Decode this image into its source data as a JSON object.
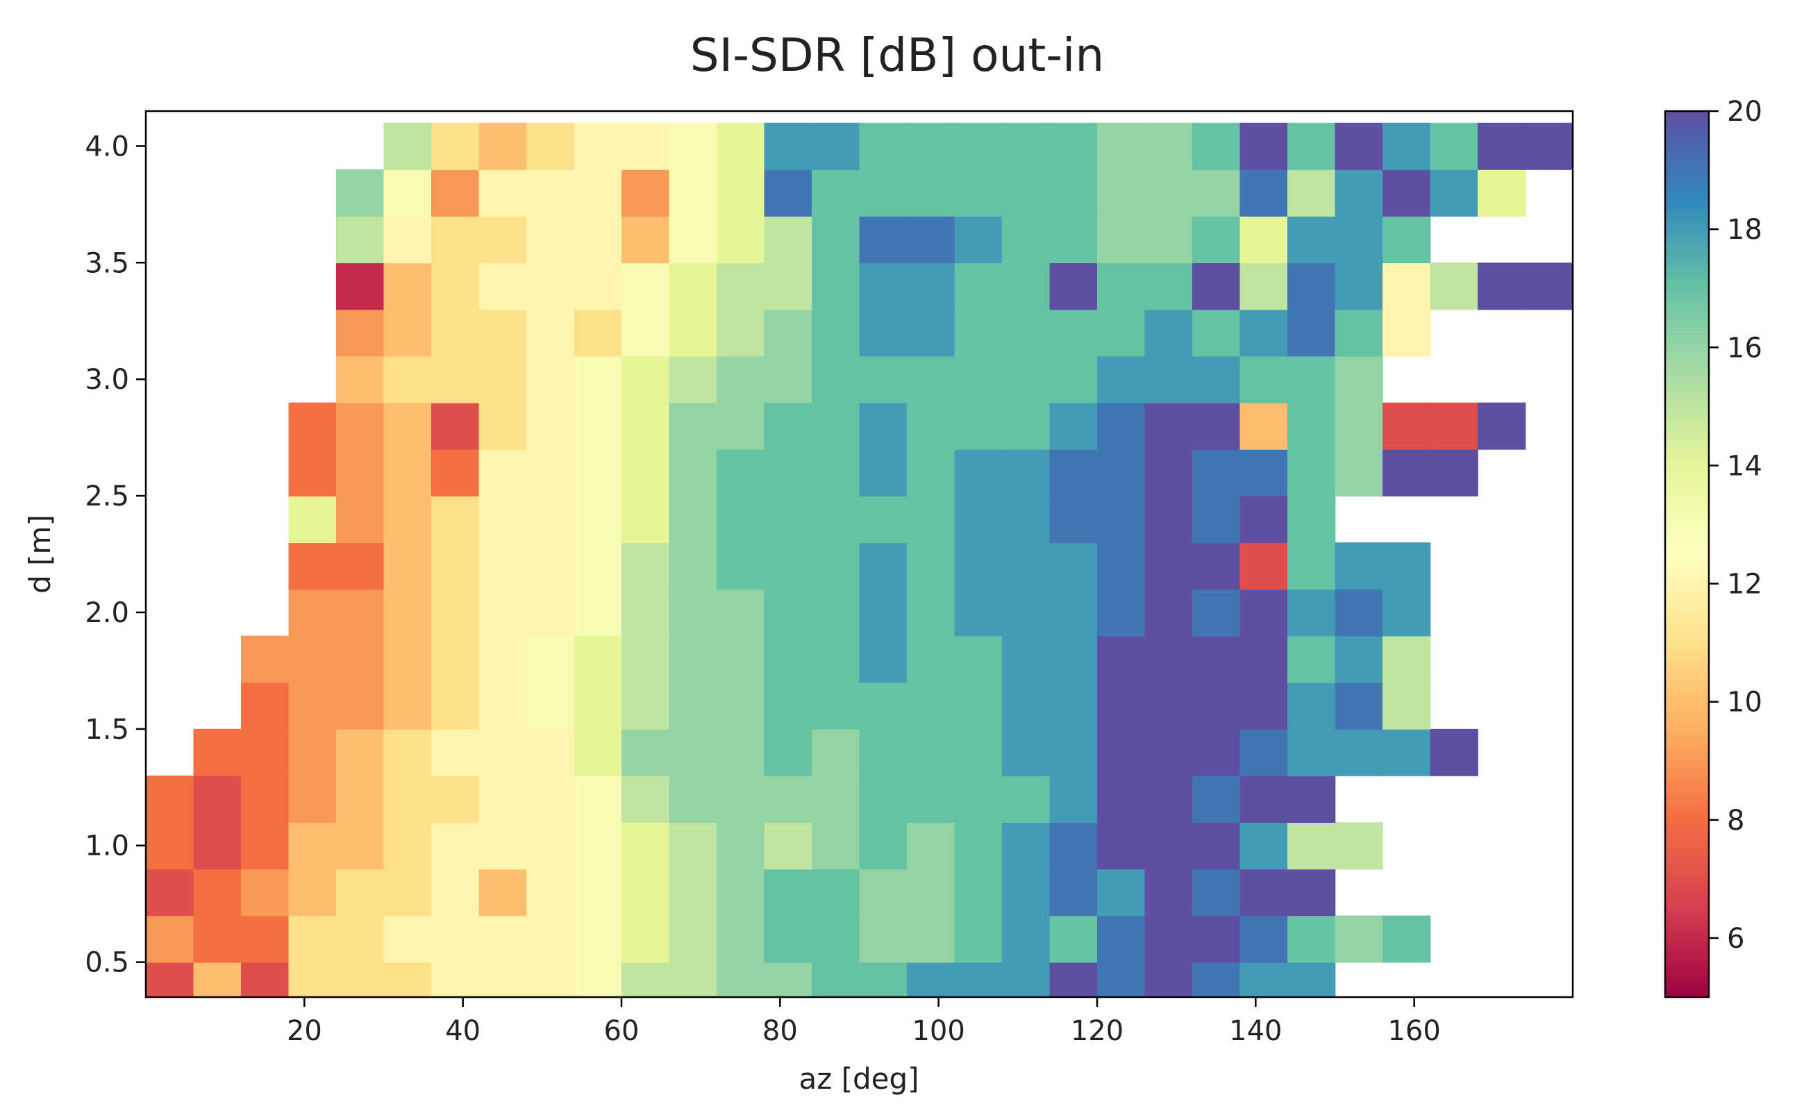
{
  "chart_data": {
    "type": "heatmap",
    "title": "SI-SDR [dB] out-in",
    "xlabel": "az [deg]",
    "ylabel": "d [m]",
    "xlim": [
      0,
      180
    ],
    "ylim": [
      0.35,
      4.15
    ],
    "x_ticks": [
      20,
      40,
      60,
      80,
      100,
      120,
      140,
      160
    ],
    "x_tick_labels": [
      "20",
      "40",
      "60",
      "80",
      "100",
      "120",
      "140",
      "160"
    ],
    "y_ticks": [
      0.5,
      1.0,
      1.5,
      2.0,
      2.5,
      3.0,
      3.5,
      4.0
    ],
    "y_tick_labels": [
      "0.5",
      "1.0",
      "1.5",
      "2.0",
      "2.5",
      "3.0",
      "3.5",
      "4.0"
    ],
    "colorbar": {
      "colormap": "Spectral",
      "range": [
        5,
        20
      ],
      "ticks": [
        6,
        8,
        10,
        12,
        14,
        16,
        18,
        20
      ],
      "tick_labels": [
        "6",
        "8",
        "10",
        "12",
        "14",
        "16",
        "18",
        "20"
      ]
    },
    "grid": false,
    "legend": "none",
    "missing_value_color": "#ffffff",
    "cell_size": {
      "az": 6,
      "d": 0.2
    },
    "z_rows": [
      {
        "d": 0.4,
        "values": [
          7,
          10,
          7,
          11,
          11,
          11,
          12,
          12,
          12,
          13,
          15,
          15,
          16,
          16,
          17,
          17,
          18,
          18,
          18,
          20,
          19,
          20,
          19,
          18,
          18,
          null,
          null,
          null,
          null,
          null
        ]
      },
      {
        "d": 0.6,
        "values": [
          9,
          8,
          8,
          11,
          11,
          12,
          12,
          12,
          12,
          13,
          14,
          15,
          16,
          17,
          17,
          16,
          16,
          17,
          18,
          17,
          19,
          20,
          20,
          19,
          17,
          16,
          17,
          null,
          null,
          null
        ]
      },
      {
        "d": 0.8,
        "values": [
          7,
          8,
          9,
          10,
          11,
          11,
          12,
          10,
          12,
          13,
          14,
          15,
          16,
          17,
          17,
          16,
          16,
          17,
          18,
          19,
          18,
          20,
          19,
          20,
          20,
          null,
          null,
          null,
          null,
          null
        ]
      },
      {
        "d": 1.0,
        "values": [
          8,
          7,
          8,
          10,
          10,
          11,
          12,
          12,
          12,
          13,
          14,
          15,
          16,
          15,
          16,
          17,
          16,
          17,
          18,
          19,
          20,
          20,
          20,
          18,
          15,
          15,
          null,
          null,
          null,
          null
        ]
      },
      {
        "d": 1.2,
        "values": [
          8,
          7,
          8,
          9,
          10,
          11,
          11,
          12,
          12,
          13,
          15,
          16,
          16,
          16,
          16,
          17,
          17,
          17,
          17,
          18,
          20,
          20,
          19,
          20,
          20,
          null,
          null,
          null,
          null,
          null
        ]
      },
      {
        "d": 1.4,
        "values": [
          null,
          8,
          8,
          9,
          10,
          11,
          12,
          12,
          12,
          14,
          16,
          16,
          16,
          17,
          16,
          17,
          17,
          17,
          18,
          18,
          20,
          20,
          20,
          19,
          18,
          18,
          18,
          20,
          null,
          null
        ]
      },
      {
        "d": 1.6,
        "values": [
          null,
          null,
          8,
          9,
          9,
          10,
          11,
          12,
          13,
          14,
          15,
          16,
          16,
          17,
          17,
          17,
          17,
          17,
          18,
          18,
          20,
          20,
          20,
          20,
          18,
          19,
          15,
          null,
          null,
          null
        ]
      },
      {
        "d": 1.8,
        "values": [
          null,
          null,
          9,
          9,
          9,
          10,
          11,
          12,
          13,
          14,
          15,
          16,
          16,
          17,
          17,
          18,
          17,
          17,
          18,
          18,
          20,
          20,
          20,
          20,
          17,
          18,
          15,
          null,
          null,
          null
        ]
      },
      {
        "d": 2.0,
        "values": [
          null,
          null,
          null,
          9,
          9,
          10,
          11,
          12,
          12,
          13,
          15,
          16,
          16,
          17,
          17,
          18,
          17,
          18,
          18,
          18,
          19,
          20,
          19,
          20,
          18,
          19,
          18,
          null,
          null,
          null
        ]
      },
      {
        "d": 2.2,
        "values": [
          null,
          null,
          null,
          8,
          8,
          10,
          11,
          12,
          12,
          13,
          15,
          16,
          17,
          17,
          17,
          18,
          17,
          18,
          18,
          18,
          19,
          20,
          20,
          7,
          17,
          18,
          18,
          null,
          null,
          null
        ]
      },
      {
        "d": 2.4,
        "values": [
          null,
          null,
          null,
          14,
          9,
          10,
          11,
          12,
          12,
          13,
          14,
          16,
          17,
          17,
          17,
          17,
          17,
          18,
          18,
          19,
          19,
          20,
          19,
          20,
          17,
          null,
          null,
          null,
          null,
          null
        ]
      },
      {
        "d": 2.6,
        "values": [
          null,
          null,
          null,
          8,
          9,
          10,
          8,
          12,
          12,
          13,
          14,
          16,
          17,
          17,
          17,
          18,
          17,
          18,
          18,
          19,
          19,
          20,
          19,
          19,
          17,
          16,
          20,
          20,
          null,
          null
        ]
      },
      {
        "d": 2.8,
        "values": [
          null,
          null,
          null,
          8,
          9,
          10,
          7,
          11,
          12,
          13,
          14,
          16,
          16,
          17,
          17,
          18,
          17,
          17,
          17,
          18,
          19,
          20,
          20,
          10,
          17,
          16,
          7,
          7,
          20,
          null
        ]
      },
      {
        "d": 3.0,
        "values": [
          null,
          null,
          null,
          null,
          10,
          11,
          11,
          11,
          12,
          13,
          14,
          15,
          16,
          16,
          17,
          17,
          17,
          17,
          17,
          17,
          18,
          18,
          18,
          17,
          17,
          16,
          null,
          null,
          null,
          null
        ]
      },
      {
        "d": 3.2,
        "values": [
          null,
          null,
          null,
          null,
          9,
          10,
          11,
          11,
          12,
          11,
          13,
          14,
          15,
          16,
          17,
          18,
          18,
          17,
          17,
          17,
          17,
          18,
          17,
          18,
          19,
          17,
          12,
          null,
          null,
          null
        ]
      },
      {
        "d": 3.4,
        "values": [
          null,
          null,
          null,
          null,
          6,
          10,
          11,
          12,
          12,
          12,
          13,
          14,
          15,
          15,
          17,
          18,
          18,
          17,
          17,
          20,
          17,
          17,
          20,
          15,
          19,
          18,
          12,
          15,
          20,
          20
        ]
      },
      {
        "d": 3.6,
        "values": [
          null,
          null,
          null,
          null,
          15,
          12,
          11,
          11,
          12,
          12,
          10,
          13,
          14,
          15,
          17,
          19,
          19,
          18,
          17,
          17,
          16,
          16,
          17,
          14,
          18,
          18,
          17,
          null,
          null,
          null
        ]
      },
      {
        "d": 3.8,
        "values": [
          null,
          null,
          null,
          null,
          16,
          13,
          9,
          12,
          12,
          12,
          9,
          13,
          14,
          19,
          17,
          17,
          17,
          17,
          17,
          17,
          16,
          16,
          16,
          19,
          15,
          18,
          20,
          18,
          14,
          null
        ]
      },
      {
        "d": 4.0,
        "values": [
          null,
          null,
          null,
          null,
          null,
          15,
          11,
          10,
          11,
          12,
          12,
          13,
          14,
          18,
          18,
          17,
          17,
          17,
          17,
          17,
          16,
          16,
          17,
          20,
          17,
          20,
          18,
          17,
          20,
          20
        ]
      }
    ]
  }
}
